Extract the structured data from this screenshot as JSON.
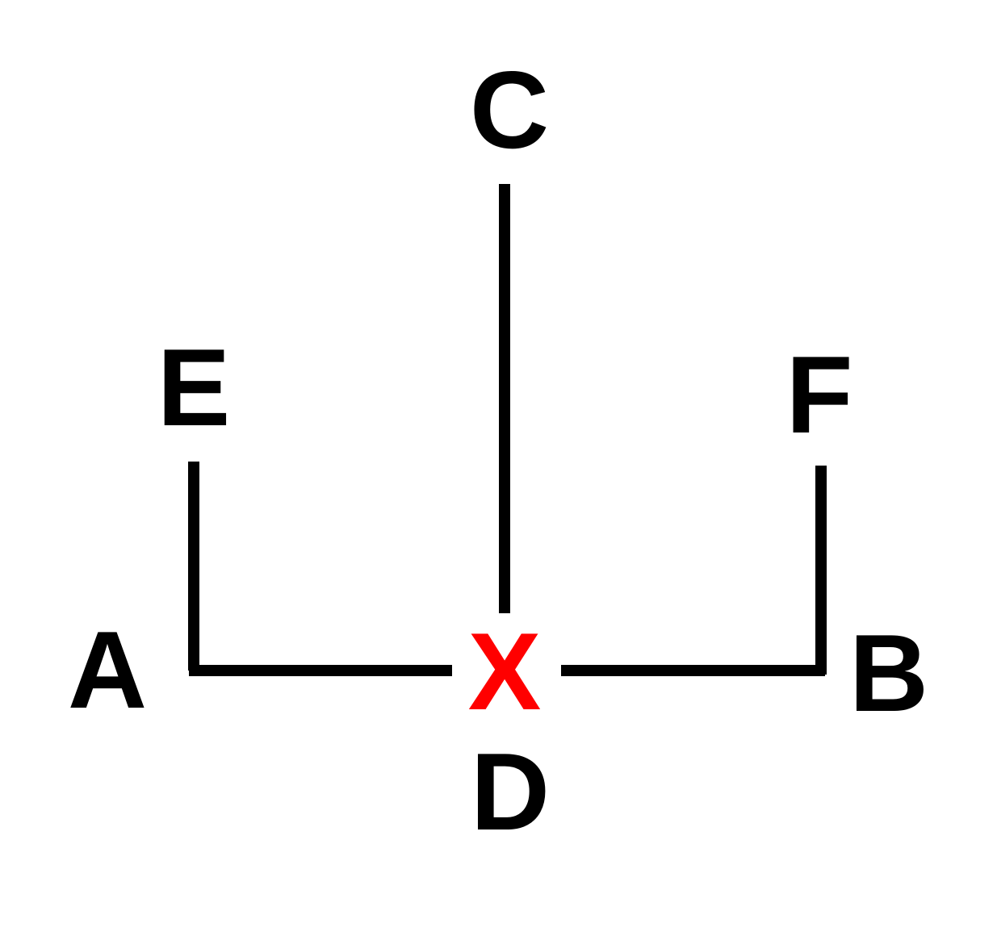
{
  "diagram": {
    "labels": {
      "a": "A",
      "b": "B",
      "c": "C",
      "d": "D",
      "e": "E",
      "f": "F",
      "x": "X"
    },
    "colors": {
      "line": "#000000",
      "label": "#000000",
      "marker": "#ff0000",
      "background": "#ffffff"
    }
  }
}
